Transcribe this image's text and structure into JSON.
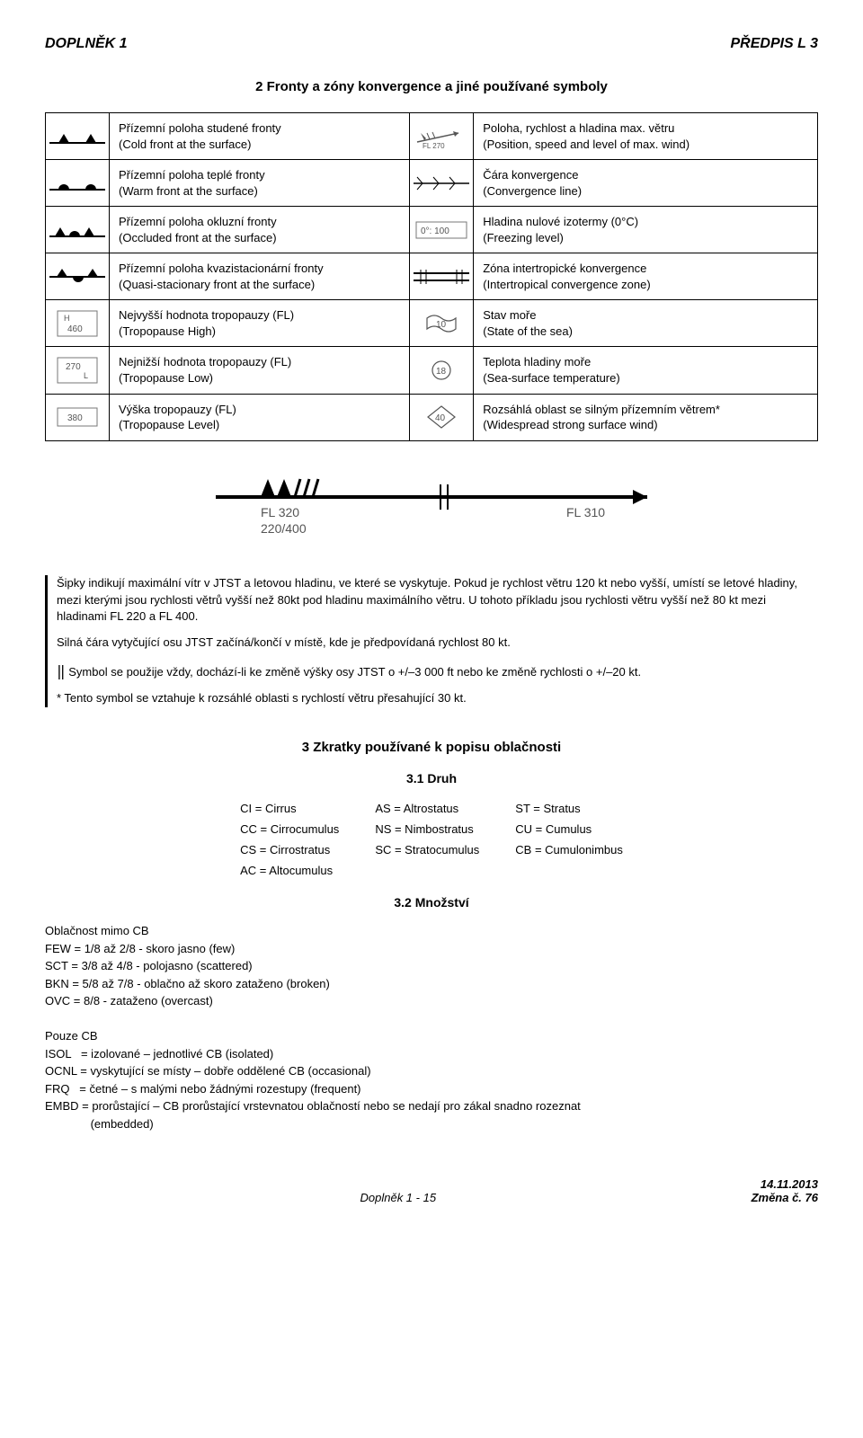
{
  "header": {
    "left": "DOPLNĚK 1",
    "right": "PŘEDPIS L 3"
  },
  "section2": {
    "title": "2   Fronty a zóny konvergence a jiné používané symboly",
    "rows": [
      {
        "l_cs": "Přízemní poloha studené fronty",
        "l_en": "(Cold front at the surface)",
        "r_cs": "Poloha, rychlost a hladina max. větru",
        "r_en": "(Position, speed and level of max. wind)"
      },
      {
        "l_cs": "Přízemní poloha teplé fronty",
        "l_en": "(Warm front at the surface)",
        "r_cs": "Čára konvergence",
        "r_en": "(Convergence line)"
      },
      {
        "l_cs": "Přízemní poloha okluzní fronty",
        "l_en": "(Occluded front at the surface)",
        "r_cs": "Hladina nulové izotermy (0°C)",
        "r_en": "(Freezing level)"
      },
      {
        "l_cs": "Přízemní poloha kvazistacionární fronty",
        "l_en": "(Quasi-stacionary front at the surface)",
        "r_cs": "Zóna intertropické konvergence",
        "r_en": "(Intertropical convergence zone)"
      },
      {
        "l_cs": "Nejvyšší hodnota tropopauzy (FL)",
        "l_en": "(Tropopause High)",
        "r_cs": "Stav moře",
        "r_en": "(State of the sea)"
      },
      {
        "l_cs": "Nejnižší hodnota tropopauzy (FL)",
        "l_en": "(Tropopause Low)",
        "r_cs": "Teplota hladiny moře",
        "r_en": "(Sea-surface temperature)"
      },
      {
        "l_cs": "Výška tropopauzy (FL)",
        "l_en": "(Tropopause Level)",
        "r_cs": "Rozsáhlá oblast se silným přízemním větrem*",
        "r_en": "(Widespread strong surface wind)"
      }
    ]
  },
  "jet": {
    "fl_left": "FL 320",
    "fl_right": "FL 310",
    "bottom": "220/400"
  },
  "notes": {
    "p1": "Šipky indikují maximální vítr v JTST a letovou hladinu, ve které se vyskytuje. Pokud je rychlost větru 120 kt nebo vyšší, umístí se letové hladiny, mezi kterými jsou rychlosti větrů vyšší než 80kt pod hladinu maximálního větru. U tohoto příkladu jsou rychlosti větru vyšší než 80 kt mezi hladinami FL 220 a FL 400.",
    "p2": "Silná čára vytyčující osu JTST začíná/končí v místě, kde je předpovídaná rychlost 80 kt.",
    "p3_prefix": "Symbol se použije vždy, dochází-li ke změně výšky osy JTST o +/–3 000 ft nebo ke změně rychlosti o +/–20 kt.",
    "p4": "* Tento symbol se vztahuje k rozsáhlé oblasti s rychlostí větru přesahující 30 kt."
  },
  "section3": {
    "title": "3   Zkratky používané k popisu oblačnosti",
    "sub1": "3.1   Druh",
    "abbr": [
      [
        "CI = Cirrus",
        "AS = Altrostatus",
        "ST = Stratus"
      ],
      [
        "CC = Cirrocumulus",
        "NS = Nimbostratus",
        "CU = Cumulus"
      ],
      [
        "CS = Cirrostratus",
        "SC = Stratocumulus",
        "CB = Cumulonimbus"
      ],
      [
        "AC = Altocumulus",
        "",
        ""
      ]
    ],
    "sub2": "3.2   Množství",
    "amount_head": "Oblačnost mimo CB",
    "amount_lines": [
      "FEW = 1/8 až 2/8 - skoro jasno (few)",
      "SCT = 3/8 až 4/8 - polojasno (scattered)",
      "BKN = 5/8 až 7/8 - oblačno až skoro zataženo (broken)",
      "OVC = 8/8 - zataženo (overcast)"
    ],
    "cb_head": "Pouze CB",
    "cb_lines": [
      "ISOL   = izolované – jednotlivé CB (isolated)",
      "OCNL = vyskytující se místy – dobře oddělené CB (occasional)",
      "FRQ   = četné – s malými nebo žádnými rozestupy (frequent)",
      "EMBD = prorůstající – CB prorůstající vrstevnatou oblačností nebo se nedají pro zákal snadno rozeznat",
      "              (embedded)"
    ]
  },
  "footer": {
    "center": "Doplněk 1 - 15",
    "date": "14.11.2013",
    "change": "Změna č. 76"
  },
  "svg": {
    "cold_front": "<svg width='62' height='18'><line x1='0' y1='16' x2='62' y2='16' stroke='#000' stroke-width='2'/><polygon points='10,16 16,6 22,16' fill='#000'/><polygon points='40,16 46,6 52,16' fill='#000'/></svg>",
    "warm_front": "<svg width='62' height='18'><line x1='0' y1='16' x2='62' y2='16' stroke='#000' stroke-width='2'/><path d='M10 16 A6 6 0 0 1 22 16 Z' fill='#000'/><path d='M40 16 A6 6 0 0 1 52 16 Z' fill='#000'/></svg>",
    "occluded_front": "<svg width='62' height='18'><line x1='0' y1='16' x2='62' y2='16' stroke='#000' stroke-width='2'/><polygon points='6,16 12,6 18,16' fill='#000'/><path d='M22 16 A6 6 0 0 1 34 16 Z' fill='#000'/><polygon points='38,16 44,6 50,16' fill='#000'/></svg>",
    "stationary_front": "<svg width='62' height='24'><line x1='0' y1='12' x2='62' y2='12' stroke='#000' stroke-width='2'/><polygon points='8,12 14,3 20,12' fill='#000'/><path d='M26 12 A6 6 0 0 0 38 12 Z' fill='#000'/><polygon points='42,12 48,3 54,12' fill='#000'/></svg>",
    "trop_high": "<svg width='46' height='30'><rect x='1' y='1' width='44' height='28' fill='none' stroke='#777'/><text x='8' y='12' font-size='9' fill='#555'>H</text><text x='12' y='24' font-size='10' fill='#555'>460</text></svg>",
    "trop_low": "<svg width='46' height='30'><rect x='1' y='1' width='44' height='28' fill='none' stroke='#777'/><text x='10' y='14' font-size='10' fill='#555'>270</text><text x='30' y='24' font-size='9' fill='#555'>L</text></svg>",
    "trop_level": "<svg width='46' height='22'><rect x='1' y='1' width='44' height='20' fill='none' stroke='#777'/><text x='12' y='15' font-size='10' fill='#555'>380</text></svg>",
    "wind_arrow": "<svg width='62' height='28'><line x1='4' y1='20' x2='50' y2='10' stroke='#555' stroke-width='1.5'/><polygon points='50,10 44,8 46,14' fill='#555'/><polygon points='12,18 8,10 14,16' fill='#555'/><line x1='18' y1='17' x2='15' y2='10' stroke='#555'/><line x1='24' y1='16' x2='21' y2='9' stroke='#555'/><text x='10' y='27' font-size='8' fill='#555'>FL 270</text></svg>",
    "convergence": "<svg width='62' height='22'><line x1='0' y1='11' x2='62' y2='11' stroke='#000' stroke-width='1.5'/><line x1='10' y1='11' x2='4' y2='4' stroke='#000'/><line x1='10' y1='11' x2='4' y2='18' stroke='#000'/><line x1='28' y1='11' x2='22' y2='4' stroke='#000'/><line x1='28' y1='11' x2='22' y2='18' stroke='#000'/><line x1='46' y1='11' x2='40' y2='4' stroke='#000'/><line x1='46' y1='11' x2='40' y2='18' stroke='#000'/></svg>",
    "freezing": "<svg width='58' height='20'><rect x='1' y='1' width='56' height='18' fill='none' stroke='#777'/><text x='6' y='14' font-size='10' fill='#555'>0°: 100</text></svg>",
    "itcz": "<svg width='62' height='20'><line x1='0' y1='6' x2='62' y2='6' stroke='#000' stroke-width='2'/><line x1='0' y1='14' x2='62' y2='14' stroke='#000' stroke-width='2'/><line x1='8' y1='2' x2='8' y2='18' stroke='#000'/><line x1='14' y1='2' x2='14' y2='18' stroke='#000'/><line x1='48' y1='2' x2='48' y2='18' stroke='#000'/><line x1='54' y1='2' x2='54' y2='18' stroke='#000'/></svg>",
    "sea_state": "<svg width='40' height='24'><path d='M4 6 Q12 0 20 6 Q28 12 36 6 L36 18 Q28 24 20 18 Q12 12 4 18 Z' fill='none' stroke='#555' stroke-width='1.2'/><text x='14' y='16' font-size='10' fill='#555'>10</text></svg>",
    "sea_temp": "<svg width='30' height='24'><circle cx='15' cy='12' r='10' fill='none' stroke='#555' stroke-width='1.2'/><text x='9' y='16' font-size='10' fill='#555'>18</text></svg>",
    "strong_wind": "<svg width='34' height='28'><polygon points='17,2 32,14 17,26 2,14' fill='none' stroke='#555' stroke-width='1.2'/><text x='10' y='18' font-size='10' fill='#555'>40</text></svg>"
  }
}
